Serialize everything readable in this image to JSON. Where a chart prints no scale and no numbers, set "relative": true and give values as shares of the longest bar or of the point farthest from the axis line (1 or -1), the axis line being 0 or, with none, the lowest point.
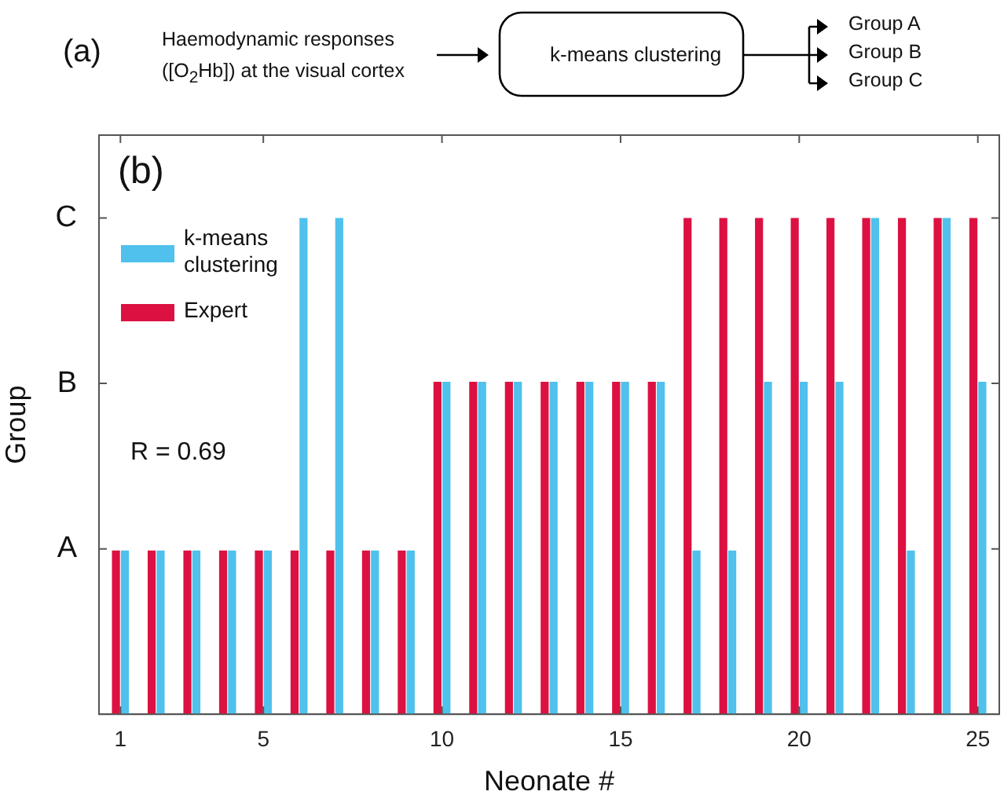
{
  "chart_data": {
    "type": "bar",
    "xlabel": "Neonate #",
    "ylabel": "Group",
    "relative": true,
    "x": [
      1,
      2,
      3,
      4,
      5,
      6,
      7,
      8,
      9,
      10,
      11,
      12,
      13,
      14,
      15,
      16,
      17,
      18,
      19,
      20,
      21,
      22,
      23,
      24,
      25
    ],
    "series": [
      {
        "name": "k-means clustering",
        "color": "#4fc1ec",
        "values": [
          0.33,
          0.33,
          0.33,
          0.33,
          0.33,
          1,
          1,
          0.33,
          0.33,
          0.67,
          0.67,
          0.67,
          0.67,
          0.67,
          0.67,
          0.67,
          0.33,
          0.33,
          0.67,
          0.67,
          0.67,
          1,
          0.33,
          1,
          0.67
        ]
      },
      {
        "name": "Expert",
        "color": "#dc1141",
        "values": [
          0.33,
          0.33,
          0.33,
          0.33,
          0.33,
          0.33,
          0.33,
          0.33,
          0.33,
          0.67,
          0.67,
          0.67,
          0.67,
          0.67,
          0.67,
          0.67,
          1,
          1,
          1,
          1,
          1,
          1,
          1,
          1,
          1
        ]
      }
    ],
    "xlim": [
      0.4,
      25.6
    ],
    "xticks": [
      1,
      5,
      10,
      15,
      20,
      25
    ],
    "grid": false,
    "legend": "top left",
    "annotations": [
      "(a)",
      "Haemodynamic responses ([O$_{2}$Hb]) at the visual cortex",
      "k-means clustering",
      "Group A",
      "Group B",
      "Group C",
      "(b)",
      "R = 0.69",
      "A",
      "B",
      "C"
    ]
  }
}
